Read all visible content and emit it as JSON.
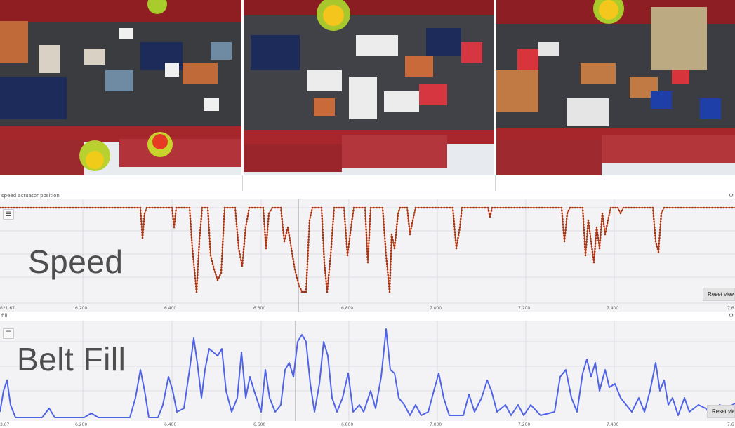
{
  "speed_panel": {
    "title": "speed actuator position",
    "overlay_label": "Speed",
    "reset_label": "Reset view",
    "x_ticks": [
      "621.67",
      "6.200",
      "6.400",
      "6.600",
      "6.800",
      "7.000",
      "7.200",
      "7.400",
      "7.6"
    ],
    "line_color": "#c8461e"
  },
  "fill_panel": {
    "title": "fill",
    "overlay_label": "Belt Fill",
    "reset_label": "Reset view",
    "x_ticks": [
      "3.67",
      "6.200",
      "6.400",
      "6.600",
      "6.800",
      "7.000",
      "7.200",
      "7.400",
      "7.6"
    ],
    "line_color": "#4f63e6"
  },
  "icons": {
    "gear": "gear-icon",
    "legend": "legend-list-icon"
  }
}
